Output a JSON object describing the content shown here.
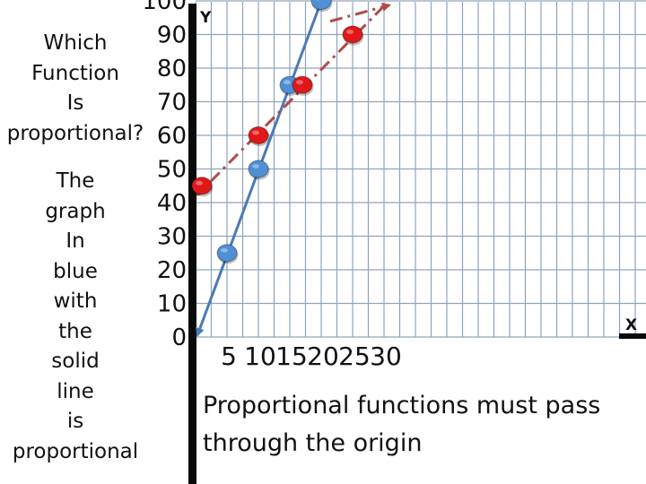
{
  "question_lines": [
    "Which",
    "Function",
    "Is",
    "proportional?"
  ],
  "answer_lines": [
    "The",
    "graph",
    "In",
    "blue",
    "with",
    "the",
    "solid",
    "line",
    "is",
    "proportional"
  ],
  "note": "Proportional functions must pass through the origin",
  "chart_data": {
    "type": "line",
    "xlabel": "X",
    "ylabel": "Y",
    "x_ticks": [
      "5",
      "10",
      "15",
      "20",
      "25",
      "30"
    ],
    "y_ticks": [
      "0",
      "10",
      "20",
      "30",
      "40",
      "50",
      "60",
      "70",
      "80",
      "90",
      "100"
    ],
    "xlim": [
      0,
      35
    ],
    "ylim": [
      0,
      100
    ],
    "grid": true,
    "series": [
      {
        "style": "solid",
        "color": "#4a7ab8",
        "marker_color": "#4f8fd6",
        "points": [
          [
            5,
            25
          ],
          [
            10,
            50
          ],
          [
            15,
            75
          ],
          [
            20,
            100
          ]
        ],
        "line_from": [
          0,
          0
        ]
      },
      {
        "style": "dash-dot",
        "color": "#b04a4a",
        "marker_color": "#e01818",
        "points": [
          [
            1,
            45
          ],
          [
            10,
            60
          ],
          [
            17,
            75
          ],
          [
            25,
            90
          ]
        ],
        "line_from": [
          0,
          42
        ],
        "line_to": [
          30,
          95
        ]
      }
    ]
  }
}
